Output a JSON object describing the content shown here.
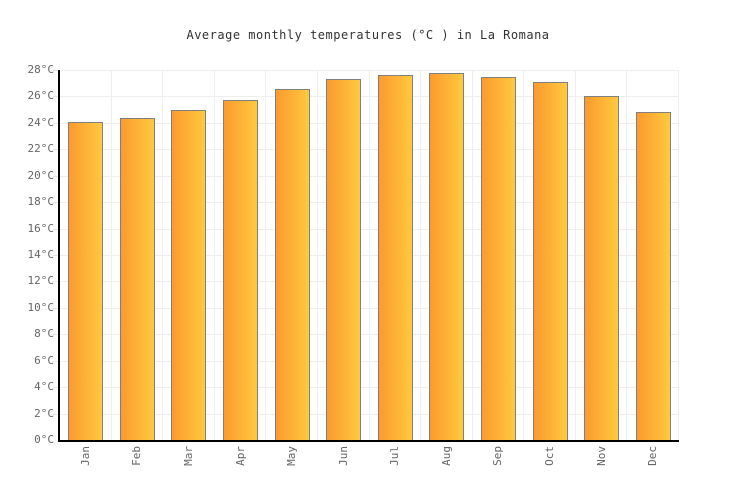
{
  "title": "Average monthly temperatures (°C ) in La Romana",
  "chart_data": {
    "type": "bar",
    "title": "Average monthly temperatures (°C ) in La Romana",
    "categories": [
      "Jan",
      "Feb",
      "Mar",
      "Apr",
      "May",
      "Jun",
      "Jul",
      "Aug",
      "Sep",
      "Oct",
      "Nov",
      "Dec"
    ],
    "values": [
      24.1,
      24.4,
      25.0,
      25.7,
      26.6,
      27.3,
      27.6,
      27.8,
      27.5,
      27.1,
      26.0,
      24.8
    ],
    "xlabel": "",
    "ylabel": "",
    "ylim": [
      0,
      28
    ],
    "ytick_step": 2,
    "ytick_suffix": "°C",
    "grid": true,
    "legend_position": "none"
  },
  "colors": {
    "bar_gradient_left": "#fc9a2f",
    "bar_gradient_right": "#fec93e",
    "bar_border": "#808080",
    "gridline": "#eeeeee",
    "tick": "#e2e2e2",
    "axis": "#000000",
    "tick_label": "#666666",
    "title_text": "#333333",
    "background": "#ffffff"
  }
}
